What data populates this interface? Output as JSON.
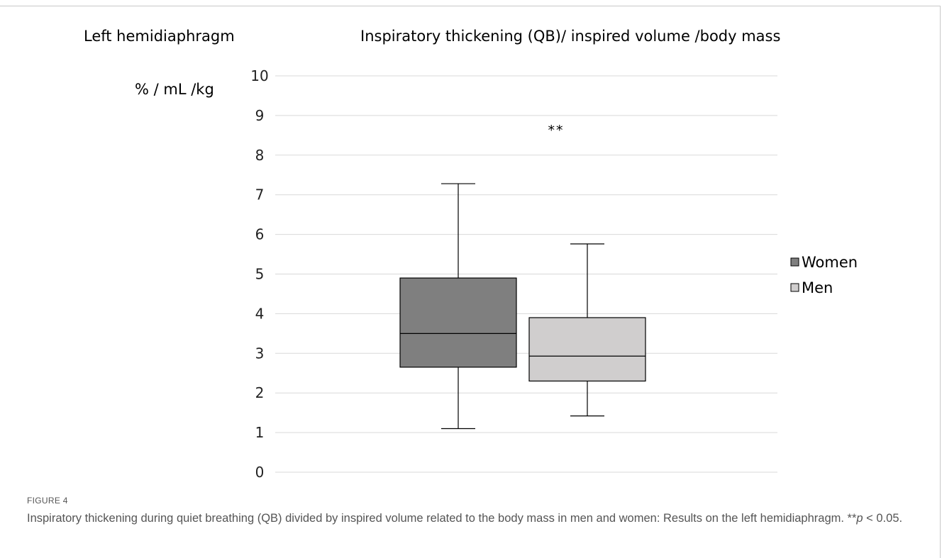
{
  "figure": {
    "label": "FIGURE 4",
    "caption_main": "Inspiratory thickening during quiet breathing (QB) divided by inspired volume related to the body mass in men and women: Results on the left hemidiaphragm. **",
    "caption_p": "p",
    "caption_tail": " < 0.05."
  },
  "chart_data": {
    "type": "box",
    "side_title": "Left hemidiaphragm",
    "title": "Inspiratory thickening (QB)/ inspired volume /body mass",
    "ylabel": "% / mL /kg",
    "ylim": [
      0,
      10
    ],
    "yticks": [
      0,
      1,
      2,
      3,
      4,
      5,
      6,
      7,
      8,
      9,
      10
    ],
    "grid": true,
    "legend_position": "right",
    "annotation": "**",
    "series": [
      {
        "name": "Women",
        "color": "#7f7f7f",
        "min": 1.1,
        "q1": 2.65,
        "median": 3.5,
        "q3": 4.9,
        "max": 7.28
      },
      {
        "name": "Men",
        "color": "#d0cece",
        "min": 1.42,
        "q1": 2.3,
        "median": 2.93,
        "q3": 3.9,
        "max": 5.76
      }
    ]
  }
}
